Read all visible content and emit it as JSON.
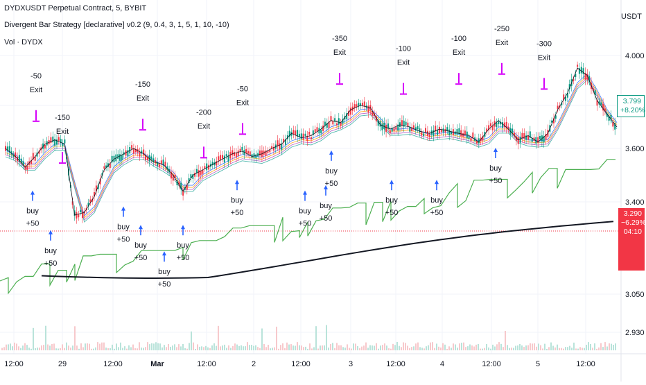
{
  "header": {
    "symbol_line": "DYDXUSDT Perpetual Contract, 5, BYBIT",
    "strategy_line": "Divergent Bar Strategy [declarative] v0.2 (9, 0.4, 3, 1, 5, 1, 10, -10)",
    "volume_line": "Vol · DYDX",
    "currency": "USDT"
  },
  "price_tags": {
    "last": "3.799",
    "last_change": "+8.20%",
    "marker": "3.290",
    "marker_change": "−6.29%",
    "countdown": "04:10"
  },
  "colors": {
    "up": "#089981",
    "down": "#f23645",
    "buy_arrow": "#2962ff",
    "exit_arrow": "#d500f9",
    "equity_line": "#4caf50",
    "balance_line": "#131722"
  },
  "chart_data": {
    "type": "line",
    "title": "",
    "y_ticks": [
      "4.000",
      "3.800",
      "3.600",
      "3.400",
      "3.050",
      "2.930"
    ],
    "x_ticks": [
      "12:00",
      "29",
      "12:00",
      "Mar",
      "12:00",
      "2",
      "12:00",
      "3",
      "12:00",
      "4",
      "12:00",
      "5",
      "12:00"
    ],
    "ylim": [
      2.9,
      4.1
    ],
    "series": [
      {
        "values": [
          3.6,
          3.57,
          3.53,
          3.57,
          3.62,
          3.64,
          3.62,
          3.35,
          3.36,
          3.42,
          3.52,
          3.56,
          3.58,
          3.6,
          3.58,
          3.55,
          3.54,
          3.5,
          3.44,
          3.5,
          3.52,
          3.54,
          3.56,
          3.58,
          3.59,
          3.57,
          3.58,
          3.6,
          3.62,
          3.67,
          3.65,
          3.66,
          3.69,
          3.73,
          3.72,
          3.78,
          3.8,
          3.79,
          3.71,
          3.69,
          3.71,
          3.7,
          3.68,
          3.67,
          3.69,
          3.68,
          3.67,
          3.66,
          3.63,
          3.69,
          3.73,
          3.69,
          3.64,
          3.66,
          3.63,
          3.67,
          3.78,
          3.85,
          3.95,
          3.92,
          3.82,
          3.76,
          3.7
        ]
      }
    ],
    "annotations": [
      {
        "kind": "exit",
        "label": "-50",
        "sublabel": "Exit",
        "x": 0,
        "y": 3.72
      },
      {
        "kind": "exit",
        "label": "-150",
        "sublabel": "Exit",
        "x": 1,
        "y": 3.54
      },
      {
        "kind": "exit",
        "label": "-150",
        "sublabel": "Exit",
        "x": 2,
        "y": 3.68
      },
      {
        "kind": "exit",
        "label": "-200",
        "sublabel": "Exit",
        "x": 3,
        "y": 3.56
      },
      {
        "kind": "exit",
        "label": "-50",
        "sublabel": "Exit",
        "x": 4,
        "y": 3.66
      },
      {
        "kind": "exit",
        "label": "-350",
        "sublabel": "Exit",
        "x": 5,
        "y": 3.88
      },
      {
        "kind": "exit",
        "label": "-100",
        "sublabel": "Exit",
        "x": 6,
        "y": 3.84
      },
      {
        "kind": "exit",
        "label": "-100",
        "sublabel": "Exit",
        "x": 7,
        "y": 3.88
      },
      {
        "kind": "exit",
        "label": "-250",
        "sublabel": "Exit",
        "x": 8,
        "y": 3.92
      },
      {
        "kind": "exit",
        "label": "-300",
        "sublabel": "Exit",
        "x": 9,
        "y": 3.86
      },
      {
        "kind": "buy",
        "label": "buy",
        "sublabel": "+50",
        "x": 10,
        "y": 3.44
      },
      {
        "kind": "buy",
        "label": "buy",
        "sublabel": "+50",
        "x": 11,
        "y": 3.29
      },
      {
        "kind": "buy",
        "label": "buy",
        "sublabel": "+50",
        "x": 12,
        "y": 3.38
      },
      {
        "kind": "buy",
        "label": "buy",
        "sublabel": "+50",
        "x": 13,
        "y": 3.31
      },
      {
        "kind": "buy",
        "label": "buy",
        "sublabel": "+50",
        "x": 14,
        "y": 3.21
      },
      {
        "kind": "buy",
        "label": "buy",
        "sublabel": "+50",
        "x": 15,
        "y": 3.31
      },
      {
        "kind": "buy",
        "label": "buy",
        "sublabel": "+50",
        "x": 16,
        "y": 3.48
      },
      {
        "kind": "buy",
        "label": "buy",
        "sublabel": "+50",
        "x": 17,
        "y": 3.44
      },
      {
        "kind": "buy",
        "label": "buy",
        "sublabel": "+50",
        "x": 18,
        "y": 3.46
      },
      {
        "kind": "buy",
        "label": "buy",
        "sublabel": "+50",
        "x": 19,
        "y": 3.59
      },
      {
        "kind": "buy",
        "label": "buy",
        "sublabel": "+50",
        "x": 20,
        "y": 3.48
      },
      {
        "kind": "buy",
        "label": "buy",
        "sublabel": "+50",
        "x": 21,
        "y": 3.48
      },
      {
        "kind": "buy",
        "label": "buy",
        "sublabel": "+50",
        "x": 22,
        "y": 3.6
      }
    ]
  }
}
